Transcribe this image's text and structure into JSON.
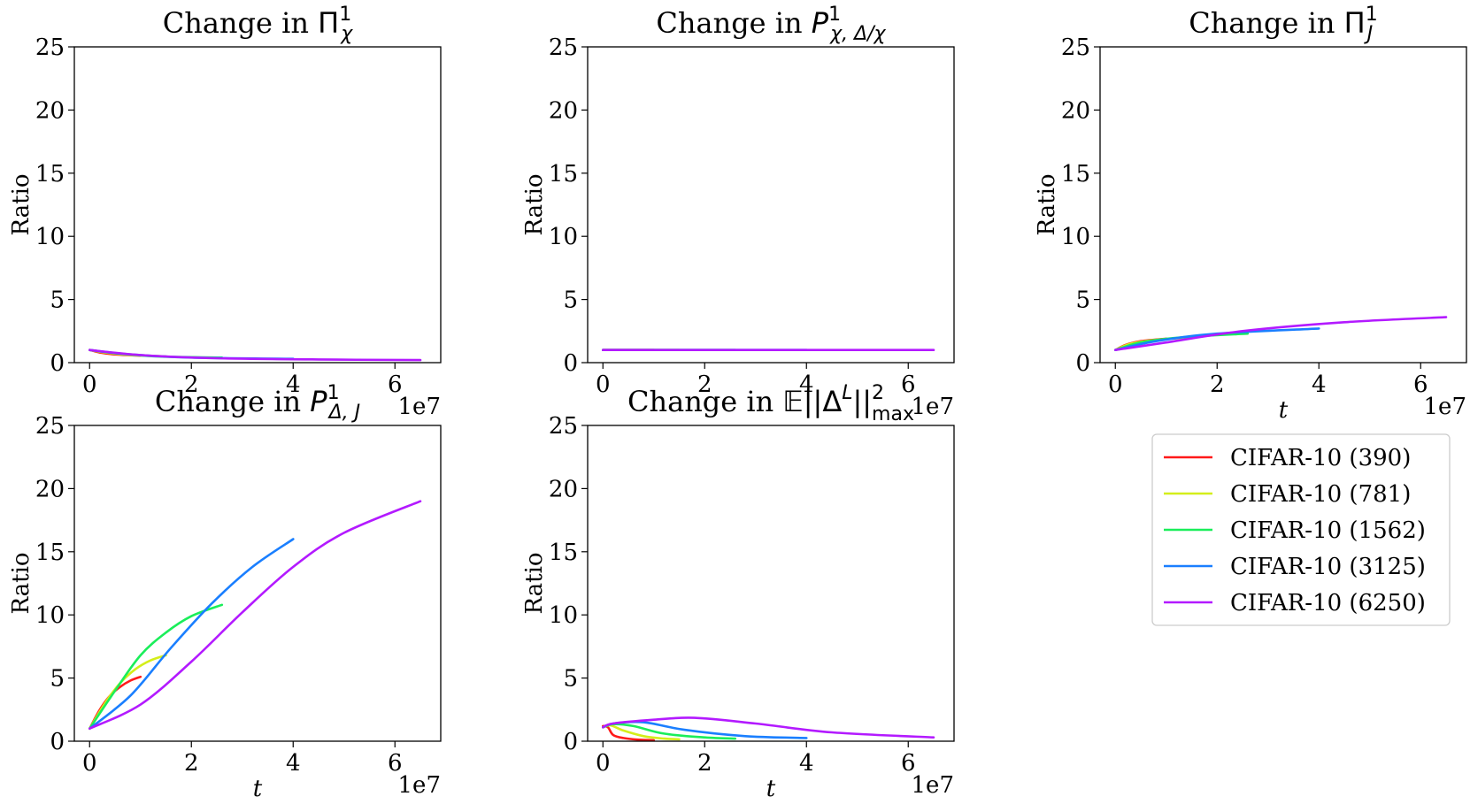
{
  "figure": {
    "legend": {
      "placement": "lower-right panel",
      "entries": [
        {
          "label": "CIFAR-10 (390)",
          "color": "#ff1a1a",
          "t_max": 10000000
        },
        {
          "label": "CIFAR-10 (781)",
          "color": "#d4ee1a",
          "t_max": 15000000
        },
        {
          "label": "CIFAR-10 (1562)",
          "color": "#1aee5a",
          "t_max": 26000000
        },
        {
          "label": "CIFAR-10 (3125)",
          "color": "#1a7fff",
          "t_max": 40000000
        },
        {
          "label": "CIFAR-10 (6250)",
          "color": "#b31aff",
          "t_max": 65000000
        }
      ]
    }
  },
  "chart_data": [
    {
      "type": "line",
      "title_prefix": "Change in ",
      "title_symbol": "Π",
      "title_sup": "1",
      "title_sub": "χ",
      "ylabel": "Ratio",
      "xlabel": "",
      "exponent_label": "1e7",
      "xlim": [
        -3000000,
        69000000
      ],
      "ylim": [
        0,
        25
      ],
      "xticks": [
        0,
        20000000,
        40000000,
        60000000
      ],
      "xtick_labels": [
        "0",
        "2",
        "4",
        "6"
      ],
      "yticks": [
        0,
        5,
        10,
        15,
        20,
        25
      ],
      "ytick_labels": [
        "0",
        "5",
        "10",
        "15",
        "20",
        "25"
      ],
      "series": [
        {
          "name": "CIFAR-10 (390)",
          "x": [
            0,
            2000000,
            5000000,
            10000000
          ],
          "y": [
            1.0,
            0.8,
            0.65,
            0.55
          ]
        },
        {
          "name": "CIFAR-10 (781)",
          "x": [
            0,
            3000000,
            8000000,
            15000000
          ],
          "y": [
            1.0,
            0.8,
            0.6,
            0.5
          ]
        },
        {
          "name": "CIFAR-10 (1562)",
          "x": [
            0,
            5000000,
            13000000,
            26000000
          ],
          "y": [
            1.0,
            0.75,
            0.5,
            0.4
          ]
        },
        {
          "name": "CIFAR-10 (3125)",
          "x": [
            0,
            8000000,
            20000000,
            40000000
          ],
          "y": [
            1.0,
            0.65,
            0.4,
            0.3
          ]
        },
        {
          "name": "CIFAR-10 (6250)",
          "x": [
            0,
            10000000,
            25000000,
            45000000,
            65000000
          ],
          "y": [
            1.0,
            0.6,
            0.35,
            0.25,
            0.2
          ]
        }
      ]
    },
    {
      "type": "line",
      "title_prefix": "Change in ",
      "title_symbol": "P",
      "title_sup": "1",
      "title_sub": "χ, Δ/χ",
      "ylabel": "Ratio",
      "xlabel": "",
      "exponent_label": "1e7",
      "xlim": [
        -3000000,
        69000000
      ],
      "ylim": [
        0,
        25
      ],
      "xticks": [
        0,
        20000000,
        40000000,
        60000000
      ],
      "xtick_labels": [
        "0",
        "2",
        "4",
        "6"
      ],
      "yticks": [
        0,
        5,
        10,
        15,
        20,
        25
      ],
      "ytick_labels": [
        "0",
        "5",
        "10",
        "15",
        "20",
        "25"
      ],
      "series": [
        {
          "name": "CIFAR-10 (390)",
          "x": [
            0,
            10000000
          ],
          "y": [
            1.0,
            1.0
          ]
        },
        {
          "name": "CIFAR-10 (781)",
          "x": [
            0,
            15000000
          ],
          "y": [
            1.0,
            1.0
          ]
        },
        {
          "name": "CIFAR-10 (1562)",
          "x": [
            0,
            26000000
          ],
          "y": [
            1.0,
            1.0
          ]
        },
        {
          "name": "CIFAR-10 (3125)",
          "x": [
            0,
            40000000
          ],
          "y": [
            1.0,
            1.0
          ]
        },
        {
          "name": "CIFAR-10 (6250)",
          "x": [
            0,
            65000000
          ],
          "y": [
            1.0,
            1.0
          ]
        }
      ]
    },
    {
      "type": "line",
      "title_prefix": "Change in ",
      "title_symbol": "Π",
      "title_sup": "1",
      "title_sub": "J",
      "ylabel": "Ratio",
      "xlabel": "t",
      "exponent_label": "1e7",
      "xlim": [
        -3000000,
        69000000
      ],
      "ylim": [
        0,
        25
      ],
      "xticks": [
        0,
        20000000,
        40000000,
        60000000
      ],
      "xtick_labels": [
        "0",
        "2",
        "4",
        "6"
      ],
      "yticks": [
        0,
        5,
        10,
        15,
        20,
        25
      ],
      "ytick_labels": [
        "0",
        "5",
        "10",
        "15",
        "20",
        "25"
      ],
      "series": [
        {
          "name": "CIFAR-10 (390)",
          "x": [
            0,
            2000000,
            5000000,
            10000000
          ],
          "y": [
            1.0,
            1.4,
            1.7,
            1.9
          ]
        },
        {
          "name": "CIFAR-10 (781)",
          "x": [
            0,
            3000000,
            8000000,
            15000000
          ],
          "y": [
            1.0,
            1.5,
            1.8,
            2.0
          ]
        },
        {
          "name": "CIFAR-10 (1562)",
          "x": [
            0,
            5000000,
            13000000,
            26000000
          ],
          "y": [
            1.0,
            1.6,
            2.0,
            2.3
          ]
        },
        {
          "name": "CIFAR-10 (3125)",
          "x": [
            0,
            8000000,
            20000000,
            40000000
          ],
          "y": [
            1.0,
            1.7,
            2.3,
            2.7
          ]
        },
        {
          "name": "CIFAR-10 (6250)",
          "x": [
            0,
            10000000,
            25000000,
            45000000,
            65000000
          ],
          "y": [
            1.0,
            1.6,
            2.5,
            3.2,
            3.6
          ]
        }
      ]
    },
    {
      "type": "line",
      "title_prefix": "Change in ",
      "title_symbol": "P",
      "title_sup": "1",
      "title_sub": "Δ, J",
      "ylabel": "Ratio",
      "xlabel": "t",
      "exponent_label": "1e7",
      "xlim": [
        -3000000,
        69000000
      ],
      "ylim": [
        0,
        25
      ],
      "xticks": [
        0,
        20000000,
        40000000,
        60000000
      ],
      "xtick_labels": [
        "0",
        "2",
        "4",
        "6"
      ],
      "yticks": [
        0,
        5,
        10,
        15,
        20,
        25
      ],
      "ytick_labels": [
        "0",
        "5",
        "10",
        "15",
        "20",
        "25"
      ],
      "series": [
        {
          "name": "CIFAR-10 (390)",
          "x": [
            0,
            2000000,
            4000000,
            6000000,
            8000000,
            10000000
          ],
          "y": [
            1.0,
            2.5,
            3.6,
            4.3,
            4.8,
            5.1
          ]
        },
        {
          "name": "CIFAR-10 (781)",
          "x": [
            0,
            3000000,
            6000000,
            9000000,
            12000000,
            15000000
          ],
          "y": [
            1.0,
            3.0,
            4.6,
            5.7,
            6.4,
            6.8
          ]
        },
        {
          "name": "CIFAR-10 (1562)",
          "x": [
            0,
            5000000,
            10000000,
            15000000,
            20000000,
            26000000
          ],
          "y": [
            1.0,
            4.0,
            6.8,
            8.6,
            9.9,
            10.8
          ]
        },
        {
          "name": "CIFAR-10 (3125)",
          "x": [
            0,
            8000000,
            16000000,
            24000000,
            32000000,
            40000000
          ],
          "y": [
            1.0,
            3.6,
            7.4,
            10.9,
            13.8,
            16.0
          ]
        },
        {
          "name": "CIFAR-10 (6250)",
          "x": [
            0,
            10000000,
            20000000,
            30000000,
            40000000,
            50000000,
            65000000
          ],
          "y": [
            1.0,
            2.9,
            6.3,
            10.2,
            13.8,
            16.5,
            19.0
          ]
        }
      ]
    },
    {
      "type": "line",
      "title_prefix": "Change in ",
      "title_symbol": "𝔼||Δ",
      "title_sup": "L",
      "title_mid": "||",
      "title_sup2": "2",
      "title_sub": "max",
      "ylabel": "Ratio",
      "xlabel": "t",
      "exponent_label": "1e7",
      "xlim": [
        -3000000,
        69000000
      ],
      "ylim": [
        0,
        25
      ],
      "xticks": [
        0,
        20000000,
        40000000,
        60000000
      ],
      "xtick_labels": [
        "0",
        "2",
        "4",
        "6"
      ],
      "yticks": [
        0,
        5,
        10,
        15,
        20,
        25
      ],
      "ytick_labels": [
        "0",
        "5",
        "10",
        "15",
        "20",
        "25"
      ],
      "series": [
        {
          "name": "CIFAR-10 (390)",
          "x": [
            0,
            1000000,
            2000000,
            4000000,
            7000000,
            10000000
          ],
          "y": [
            1.2,
            1.1,
            0.5,
            0.25,
            0.12,
            0.08
          ]
        },
        {
          "name": "CIFAR-10 (781)",
          "x": [
            0,
            1500000,
            4000000,
            8000000,
            12000000,
            15000000
          ],
          "y": [
            1.1,
            1.25,
            0.85,
            0.4,
            0.2,
            0.15
          ]
        },
        {
          "name": "CIFAR-10 (1562)",
          "x": [
            0,
            2000000,
            6000000,
            12000000,
            20000000,
            26000000
          ],
          "y": [
            1.1,
            1.35,
            1.2,
            0.6,
            0.3,
            0.2
          ]
        },
        {
          "name": "CIFAR-10 (3125)",
          "x": [
            0,
            2000000,
            8000000,
            16000000,
            28000000,
            40000000
          ],
          "y": [
            1.1,
            1.4,
            1.5,
            0.9,
            0.4,
            0.25
          ]
        },
        {
          "name": "CIFAR-10 (6250)",
          "x": [
            0,
            2000000,
            10000000,
            18000000,
            30000000,
            45000000,
            65000000
          ],
          "y": [
            1.1,
            1.4,
            1.7,
            1.85,
            1.4,
            0.7,
            0.3
          ]
        }
      ]
    }
  ]
}
